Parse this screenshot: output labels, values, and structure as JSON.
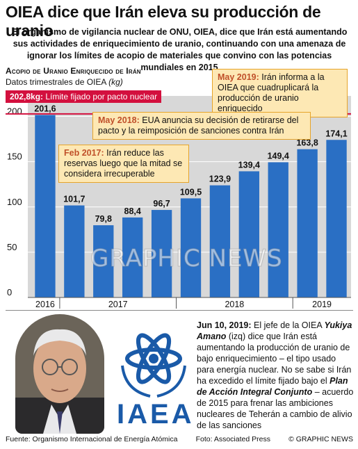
{
  "headline": "OIEA dice que Irán eleva su producción de uranio",
  "standfirst": "El organismo de vigilancia nuclear de ONU, OIEA, dice que Irán está aumentando sus actividades de enriquecimiento de uranio, continuando con una amenaza de ignorar los límites de acopio de materiales que convino con las potencias mundiales en 2015",
  "chart_title": "Acopio de Uranio Enriquecido de Irán",
  "chart_subtitle": "Datos trimestrales de OIEA",
  "chart_unit": "(kg)",
  "limit": {
    "value_label": "202,8kg:",
    "text": "Límite fijado por pacto nuclear",
    "color": "#d3103e"
  },
  "callouts": [
    {
      "date": "May 2019:",
      "text": "Irán informa a la OIEA que cuadruplicará la producción de uranio enriquecido"
    },
    {
      "date": "May 2018:",
      "text": "EUA anuncia su decisión de retirarse del pacto y la reimposición de sanciones contra Irán"
    },
    {
      "date": "Feb 2017:",
      "text": "Irán reduce las reservas luego que la mitad se considera irrecuperable"
    }
  ],
  "chart_data": {
    "type": "bar",
    "values": [
      201.6,
      101.7,
      79.8,
      88.4,
      96.7,
      109.5,
      123.9,
      139.4,
      149.4,
      163.8,
      174.1
    ],
    "value_labels": [
      "201,6",
      "101,7",
      "79,8",
      "88,4",
      "96,7",
      "109,5",
      "123,9",
      "139,4",
      "149,4",
      "163,8",
      "174,1"
    ],
    "x_labels": [
      "2016",
      "2017",
      "2018",
      "2019"
    ],
    "y_ticks": [
      0,
      50,
      100,
      150,
      200
    ],
    "ylim": [
      0,
      215
    ],
    "limit_line": 202.8,
    "bar_color": "#2a6fc4",
    "background": "#d8d8d8"
  },
  "story": {
    "date": "Jun 10, 2019:",
    "p1": "El jefe de la OIEA",
    "name": "Yukiya Amano",
    "p2": "(izq) dice que Irán está aumentando la producción de uranio de bajo enriquecimiento – el tipo usado para energía nuclear. No se sabe si Irán ha excedido el límite fijado bajo el",
    "plan": "Plan de Acción Integral Conjunto",
    "p3": "– acuerdo de 2015 para  frenar las ambiciones nucleares de Teherán a cambio de alivio de las sanciones"
  },
  "logo_text": "IAEA",
  "watermark": "GRAPHIC NEWS",
  "footer": {
    "source": "Fuente: Organismo Internacional de Energía Atómica",
    "photo": "Foto: Associated Press",
    "copyright": "© GRAPHIC NEWS"
  }
}
